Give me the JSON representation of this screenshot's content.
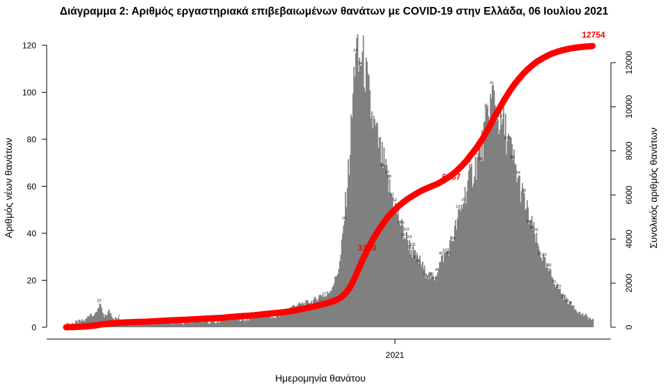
{
  "chart_data": {
    "type": "bar",
    "title": "Διάγραμμα 2: Αριθμός εργαστηριακά επιβεβαιωμένων θανάτων με COVID-19 στην Ελλάδα, 06 Ιουλίου 2021",
    "xlabel": "Ημερομηνία θανάτου",
    "ylabel_left": "Αριθμός νέων θανάτων",
    "ylabel_right": "Συνολικός αριθμός θανάτων",
    "x_tick_label": "2021",
    "x_tick_day_index": 315,
    "left_axis": {
      "ylim": [
        0,
        120
      ],
      "ticks": [
        "0",
        "20",
        "40",
        "60",
        "80",
        "100",
        "120"
      ]
    },
    "right_axis": {
      "ylim": [
        0,
        12500
      ],
      "ticks": [
        "0",
        "2000",
        "4000",
        "6000",
        "8000",
        "10000",
        "12000"
      ]
    },
    "grid": false,
    "series": [
      {
        "kind": "bar",
        "color": "#808080"
      },
      {
        "kind": "line",
        "color": "#ff0000",
        "annotations": [
          {
            "label": "3140",
            "day_index": 300,
            "value": 3140
          },
          {
            "label": "6387",
            "day_index": 380,
            "value": 6387
          },
          {
            "label": "12754",
            "day_index": 499,
            "value": 12754
          }
        ]
      }
    ],
    "daily_deaths_key": [
      [
        0,
        1
      ],
      [
        10,
        2
      ],
      [
        20,
        3
      ],
      [
        25,
        6
      ],
      [
        30,
        5
      ],
      [
        35,
        10
      ],
      [
        40,
        4
      ],
      [
        45,
        7
      ],
      [
        50,
        4
      ],
      [
        60,
        3
      ],
      [
        80,
        2
      ],
      [
        100,
        3
      ],
      [
        120,
        2
      ],
      [
        140,
        3
      ],
      [
        160,
        2
      ],
      [
        170,
        5
      ],
      [
        180,
        4
      ],
      [
        190,
        3
      ],
      [
        200,
        5
      ],
      [
        210,
        6
      ],
      [
        220,
        4
      ],
      [
        230,
        6
      ],
      [
        240,
        9
      ],
      [
        250,
        10
      ],
      [
        260,
        11
      ],
      [
        265,
        12
      ],
      [
        270,
        14
      ],
      [
        275,
        13
      ],
      [
        280,
        16
      ],
      [
        285,
        20
      ],
      [
        290,
        27
      ],
      [
        293,
        38
      ],
      [
        296,
        52
      ],
      [
        298,
        62
      ],
      [
        300,
        70
      ],
      [
        303,
        90
      ],
      [
        305,
        106
      ],
      [
        307,
        121
      ],
      [
        310,
        110
      ],
      [
        313,
        115
      ],
      [
        316,
        112
      ],
      [
        318,
        106
      ],
      [
        320,
        101
      ],
      [
        323,
        92
      ],
      [
        326,
        86
      ],
      [
        330,
        80
      ],
      [
        334,
        73
      ],
      [
        338,
        68
      ],
      [
        342,
        60
      ],
      [
        346,
        55
      ],
      [
        350,
        50
      ],
      [
        354,
        45
      ],
      [
        358,
        40
      ],
      [
        362,
        37
      ],
      [
        366,
        33
      ],
      [
        370,
        30
      ],
      [
        375,
        28
      ],
      [
        380,
        24
      ],
      [
        385,
        22
      ],
      [
        390,
        20
      ],
      [
        395,
        26
      ],
      [
        400,
        30
      ],
      [
        405,
        33
      ],
      [
        410,
        38
      ],
      [
        415,
        45
      ],
      [
        420,
        52
      ],
      [
        425,
        60
      ],
      [
        430,
        65
      ],
      [
        435,
        70
      ],
      [
        440,
        75
      ],
      [
        445,
        85
      ],
      [
        450,
        95
      ],
      [
        453,
        99
      ],
      [
        456,
        93
      ],
      [
        460,
        88
      ],
      [
        465,
        85
      ],
      [
        470,
        78
      ],
      [
        475,
        70
      ],
      [
        480,
        62
      ],
      [
        485,
        55
      ],
      [
        490,
        48
      ],
      [
        495,
        42
      ],
      [
        500,
        35
      ],
      [
        505,
        30
      ],
      [
        510,
        25
      ],
      [
        515,
        22
      ],
      [
        520,
        18
      ],
      [
        525,
        15
      ],
      [
        530,
        12
      ],
      [
        535,
        10
      ],
      [
        540,
        8
      ],
      [
        545,
        6
      ],
      [
        550,
        5
      ],
      [
        555,
        4
      ],
      [
        558,
        3
      ]
    ],
    "bar_value_labels": [
      {
        "day": 35,
        "label": "10"
      },
      {
        "day": 56,
        "label": "7"
      },
      {
        "day": 229,
        "label": "8"
      },
      {
        "day": 274,
        "label": "12"
      },
      {
        "day": 295,
        "label": "16"
      },
      {
        "day": 307,
        "label": "14"
      },
      {
        "day": 312,
        "label": "14"
      },
      {
        "day": 336,
        "label": "18"
      },
      {
        "day": 341,
        "label": "27"
      },
      {
        "day": 343,
        "label": "38"
      },
      {
        "day": 346,
        "label": "51"
      },
      {
        "day": 349,
        "label": "62"
      },
      {
        "day": 352,
        "label": "70"
      },
      {
        "day": 354,
        "label": "77"
      },
      {
        "day": 357,
        "label": "90"
      },
      {
        "day": 359,
        "label": "121"
      },
      {
        "day": 361,
        "label": "110"
      },
      {
        "day": 364,
        "label": "116"
      },
      {
        "day": 366,
        "label": "112"
      },
      {
        "day": 368,
        "label": "101"
      },
      {
        "day": 371,
        "label": "92"
      },
      {
        "day": 374,
        "label": "86"
      },
      {
        "day": 377,
        "label": "77"
      },
      {
        "day": 381,
        "label": "73"
      },
      {
        "day": 384,
        "label": "68"
      },
      {
        "day": 388,
        "label": "60"
      },
      {
        "day": 391,
        "label": "53"
      },
      {
        "day": 394,
        "label": "48"
      },
      {
        "day": 398,
        "label": "40"
      },
      {
        "day": 402,
        "label": "37"
      },
      {
        "day": 406,
        "label": "30"
      },
      {
        "day": 411,
        "label": "28"
      },
      {
        "day": 416,
        "label": "23"
      },
      {
        "day": 422,
        "label": "20"
      },
      {
        "day": 428,
        "label": "16"
      },
      {
        "day": 434,
        "label": "26"
      },
      {
        "day": 440,
        "label": "30"
      },
      {
        "day": 446,
        "label": "35"
      },
      {
        "day": 452,
        "label": "41"
      },
      {
        "day": 458,
        "label": "47"
      },
      {
        "day": 463,
        "label": "57"
      },
      {
        "day": 468,
        "label": "63"
      },
      {
        "day": 474,
        "label": "88"
      },
      {
        "day": 480,
        "label": "84"
      },
      {
        "day": 486,
        "label": "99"
      },
      {
        "day": 491,
        "label": "93"
      },
      {
        "day": 495,
        "label": "86"
      },
      {
        "day": 499,
        "label": "75"
      },
      {
        "day": 503,
        "label": "61"
      },
      {
        "day": 508,
        "label": "50"
      },
      {
        "day": 513,
        "label": "40"
      },
      {
        "day": 518,
        "label": "32"
      },
      {
        "day": 523,
        "label": "23"
      },
      {
        "day": 528,
        "label": "27"
      },
      {
        "day": 532,
        "label": "16"
      },
      {
        "day": 536,
        "label": "8"
      },
      {
        "day": 539,
        "label": "3"
      }
    ]
  }
}
